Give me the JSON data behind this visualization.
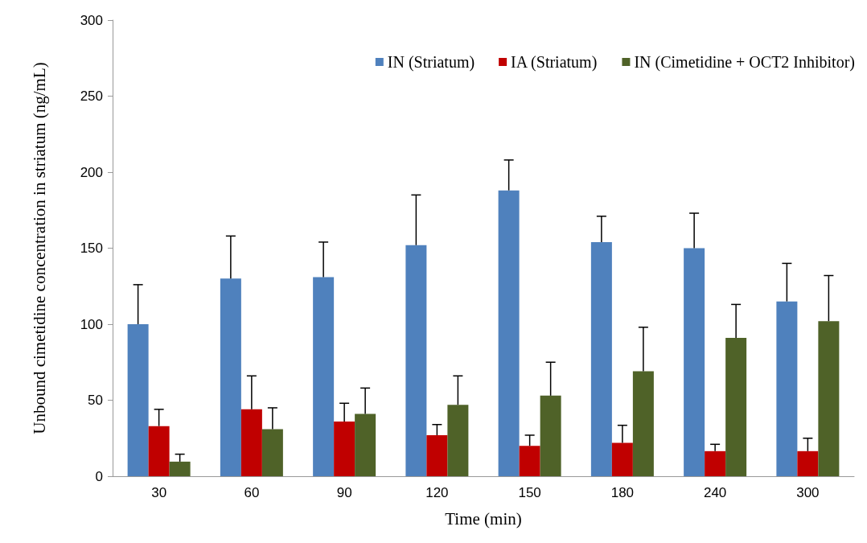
{
  "chart_data": {
    "type": "bar",
    "xlabel": "Time (min)",
    "ylabel": "Unbound cimetidine concentration in striatum (ng/mL)",
    "categories": [
      "30",
      "60",
      "90",
      "120",
      "150",
      "180",
      "240",
      "300"
    ],
    "series": [
      {
        "name": "IN (Striatum)",
        "color": "#4f81bd",
        "values": [
          100,
          130,
          131,
          152,
          188,
          154,
          150,
          115
        ],
        "errors": [
          [
            100,
            126
          ],
          [
            130,
            158
          ],
          [
            131,
            154
          ],
          [
            152,
            185
          ],
          [
            188,
            208
          ],
          [
            154,
            171
          ],
          [
            150,
            173
          ],
          [
            115,
            140
          ]
        ]
      },
      {
        "name": "IA (Striatum)",
        "color": "#c00000",
        "values": [
          33,
          44,
          36,
          27,
          20,
          22,
          16.5,
          16.5
        ],
        "errors": [
          [
            33,
            44
          ],
          [
            44,
            66
          ],
          [
            36,
            48
          ],
          [
            27,
            34
          ],
          [
            20,
            27
          ],
          [
            22,
            33.5
          ],
          [
            16.5,
            21
          ],
          [
            16.5,
            25
          ]
        ]
      },
      {
        "name": "IN (Cimetidine + OCT2 Inhibitor)",
        "color": "#4f6228",
        "values": [
          9.6,
          31,
          41,
          47,
          53,
          69,
          91,
          102
        ],
        "errors": [
          [
            9.6,
            14.5
          ],
          [
            31,
            45
          ],
          [
            41,
            58
          ],
          [
            47,
            66
          ],
          [
            53,
            75
          ],
          [
            69,
            98
          ],
          [
            91,
            113
          ],
          [
            102,
            132
          ]
        ]
      }
    ],
    "ylim": [
      0,
      300
    ],
    "yticks": [
      0,
      50,
      100,
      150,
      200,
      250,
      300
    ],
    "grid": false,
    "legend": "top right"
  }
}
